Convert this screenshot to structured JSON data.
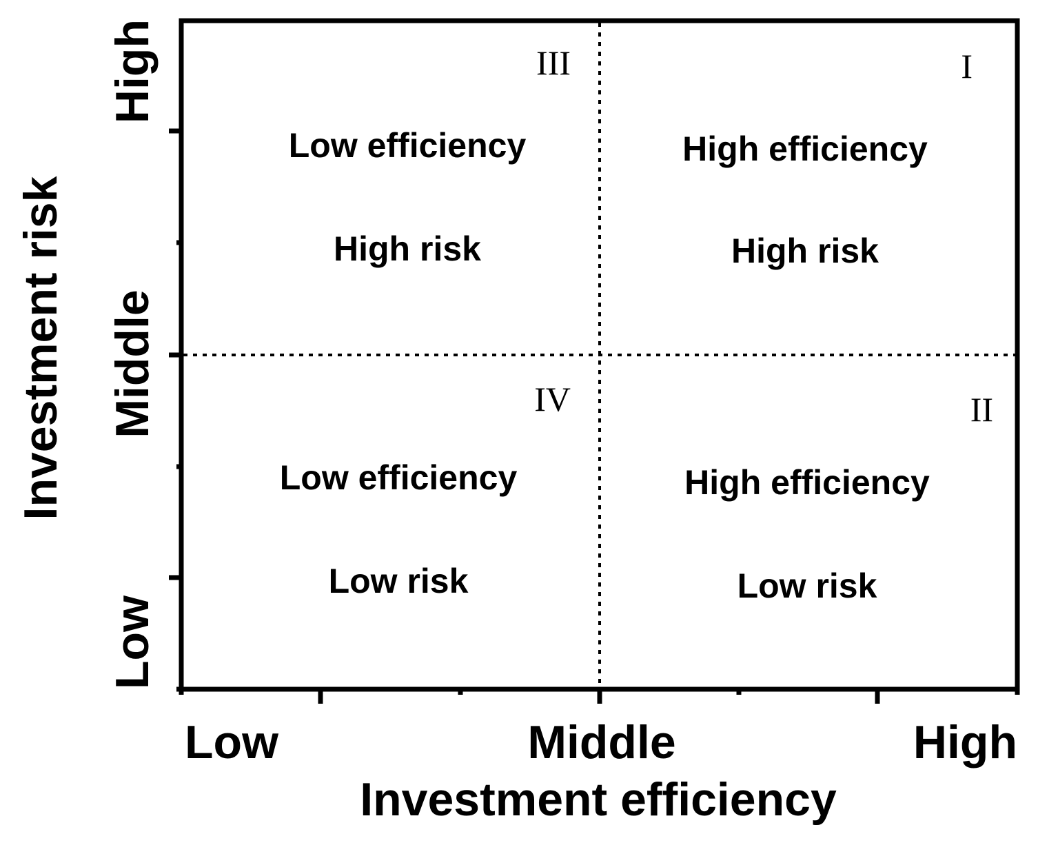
{
  "x_axis": {
    "title": "Investment efficiency",
    "tick_labels": [
      "Low",
      "Middle",
      "High"
    ]
  },
  "y_axis": {
    "title": "Investment risk",
    "tick_labels": [
      "Low",
      "Middle",
      "High"
    ]
  },
  "quadrants": [
    {
      "numeral": "III",
      "line1": "Low efficiency",
      "line2": "High risk"
    },
    {
      "numeral": "I",
      "line1": "High efficiency",
      "line2": "High risk"
    },
    {
      "numeral": "IV",
      "line1": "Low efficiency",
      "line2": "Low risk"
    },
    {
      "numeral": "II",
      "line1": "High efficiency",
      "line2": "Low risk"
    }
  ],
  "colors": {
    "ink": "#000000",
    "background": "#ffffff"
  }
}
